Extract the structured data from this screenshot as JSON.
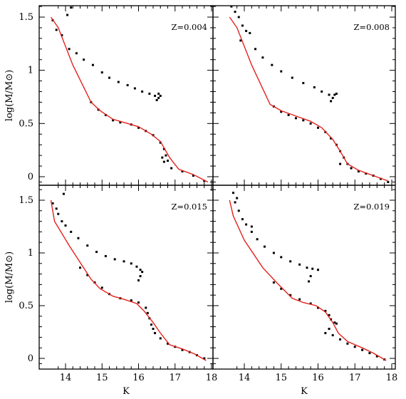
{
  "chart_data": {
    "type": "scatter",
    "layout": "2x2 grid of panels with shared axes",
    "xlabel": "K",
    "ylabel": "log(M/M⊙)",
    "xlim": [
      13.3,
      18.2
    ],
    "ylim": [
      -0.1,
      1.6
    ],
    "x_ticks": [
      14,
      15,
      16,
      17,
      18
    ],
    "y_ticks": [
      0,
      0.5,
      1,
      1.5
    ],
    "x_tick_labels": [
      "14",
      "15",
      "16",
      "17",
      "18"
    ],
    "y_tick_labels": [
      "0",
      "0.5",
      "1",
      "1.5"
    ],
    "grid": false,
    "colors": {
      "red_series": "#e3211c",
      "black_series": "#000000"
    },
    "panels": [
      {
        "label": "Z=0.004",
        "red_line": {
          "x": [
            13.6,
            13.8,
            14.2,
            14.7,
            14.95,
            15.3,
            15.6,
            16.0,
            16.35,
            16.6,
            16.7,
            16.85,
            17.1,
            17.5,
            17.9
          ],
          "y": [
            1.5,
            1.4,
            1.05,
            0.7,
            0.62,
            0.54,
            0.51,
            0.47,
            0.4,
            0.33,
            0.27,
            0.18,
            0.07,
            0.02,
            -0.05
          ]
        },
        "black_points": {
          "x": [
            13.65,
            13.75,
            13.9,
            14.1,
            14.3,
            14.5,
            14.75,
            15.0,
            15.2,
            15.45,
            15.7,
            15.9,
            16.1,
            16.3,
            16.45,
            16.55,
            16.6,
            16.5,
            16.55,
            14.7,
            14.9,
            15.1,
            15.3,
            15.5,
            15.8,
            16.0,
            16.2,
            16.4,
            16.6,
            16.7,
            16.75,
            16.65,
            16.7,
            16.8,
            16.9,
            17.2,
            17.5,
            17.8,
            14.05,
            14.15
          ],
          "y": [
            1.47,
            1.38,
            1.33,
            1.2,
            1.16,
            1.1,
            1.05,
            0.98,
            0.93,
            0.89,
            0.86,
            0.83,
            0.8,
            0.78,
            0.76,
            0.78,
            0.76,
            0.72,
            0.74,
            0.7,
            0.63,
            0.58,
            0.53,
            0.51,
            0.49,
            0.46,
            0.43,
            0.39,
            0.32,
            0.26,
            0.2,
            0.18,
            0.14,
            0.15,
            0.08,
            0.05,
            0.01,
            -0.04,
            1.52,
            1.59
          ]
        }
      },
      {
        "label": "Z=0.008",
        "red_line": {
          "x": [
            13.6,
            13.8,
            14.2,
            14.7,
            15.0,
            15.4,
            15.8,
            16.1,
            16.4,
            16.6,
            16.8,
            17.1,
            17.5,
            17.9
          ],
          "y": [
            1.5,
            1.4,
            1.05,
            0.68,
            0.62,
            0.57,
            0.52,
            0.46,
            0.35,
            0.24,
            0.12,
            0.06,
            0.01,
            -0.04
          ]
        },
        "black_points": {
          "x": [
            13.65,
            13.75,
            13.85,
            13.95,
            14.05,
            14.15,
            13.9,
            14.3,
            14.5,
            14.75,
            15.0,
            15.3,
            15.6,
            15.9,
            16.1,
            16.3,
            16.45,
            16.5,
            16.4,
            16.35,
            14.8,
            15.0,
            15.2,
            15.4,
            15.6,
            15.8,
            16.0,
            16.2,
            16.35,
            16.5,
            16.6,
            16.7,
            16.8,
            16.6,
            16.9,
            17.1,
            17.3,
            17.5,
            17.7,
            17.9
          ],
          "y": [
            1.6,
            1.55,
            1.5,
            1.42,
            1.37,
            1.35,
            1.28,
            1.2,
            1.12,
            1.05,
            0.99,
            0.93,
            0.88,
            0.84,
            0.8,
            0.77,
            0.77,
            0.78,
            0.74,
            0.71,
            0.66,
            0.61,
            0.58,
            0.55,
            0.53,
            0.5,
            0.46,
            0.42,
            0.36,
            0.3,
            0.24,
            0.18,
            0.12,
            0.12,
            0.08,
            0.05,
            0.03,
            0.01,
            -0.02,
            -0.05
          ]
        }
      },
      {
        "label": "Z=0.015",
        "red_line": {
          "x": [
            13.6,
            13.7,
            14.1,
            14.7,
            14.95,
            15.3,
            15.6,
            15.95,
            16.15,
            16.4,
            16.6,
            16.85,
            17.2,
            17.55,
            17.85
          ],
          "y": [
            1.5,
            1.3,
            1.07,
            0.75,
            0.66,
            0.59,
            0.56,
            0.52,
            0.45,
            0.34,
            0.24,
            0.13,
            0.09,
            0.04,
            -0.02
          ]
        },
        "black_points": {
          "x": [
            13.65,
            13.75,
            13.8,
            13.9,
            14.0,
            14.15,
            14.35,
            14.6,
            14.85,
            15.1,
            15.35,
            15.6,
            15.8,
            15.95,
            16.05,
            16.1,
            16.05,
            16.0,
            14.8,
            15.0,
            15.2,
            15.5,
            15.8,
            16.0,
            16.2,
            16.25,
            16.3,
            16.35,
            16.4,
            16.45,
            16.6,
            16.8,
            17.0,
            17.2,
            17.4,
            17.6,
            17.8,
            14.4,
            14.6,
            13.95
          ],
          "y": [
            1.47,
            1.42,
            1.37,
            1.3,
            1.26,
            1.2,
            1.14,
            1.07,
            1.01,
            0.97,
            0.94,
            0.92,
            0.9,
            0.87,
            0.84,
            0.82,
            0.78,
            0.74,
            0.72,
            0.67,
            0.61,
            0.57,
            0.55,
            0.53,
            0.48,
            0.43,
            0.38,
            0.32,
            0.28,
            0.24,
            0.19,
            0.14,
            0.11,
            0.08,
            0.06,
            0.03,
            0.0,
            0.86,
            0.79,
            1.56
          ]
        }
      },
      {
        "label": "Z=0.019",
        "red_line": {
          "x": [
            13.6,
            13.7,
            14.0,
            14.5,
            14.9,
            15.3,
            15.6,
            15.95,
            16.2,
            16.4,
            16.55,
            16.8,
            17.2,
            17.5,
            17.85
          ],
          "y": [
            1.5,
            1.35,
            1.12,
            0.86,
            0.71,
            0.57,
            0.53,
            0.5,
            0.44,
            0.34,
            0.24,
            0.16,
            0.1,
            0.05,
            -0.02
          ]
        },
        "black_points": {
          "x": [
            13.7,
            13.75,
            13.85,
            13.95,
            14.05,
            14.2,
            14.35,
            14.55,
            14.8,
            15.0,
            15.25,
            15.5,
            15.7,
            15.85,
            16.0,
            15.8,
            15.75,
            14.8,
            15.0,
            15.25,
            15.5,
            15.8,
            16.0,
            16.2,
            16.3,
            16.35,
            16.45,
            16.5,
            16.3,
            16.2,
            16.4,
            16.6,
            16.8,
            17.0,
            17.2,
            17.4,
            17.6,
            17.8,
            13.8,
            14.2
          ],
          "y": [
            1.57,
            1.48,
            1.4,
            1.32,
            1.27,
            1.2,
            1.13,
            1.06,
            1.0,
            0.96,
            0.92,
            0.89,
            0.86,
            0.85,
            0.84,
            0.78,
            0.73,
            0.72,
            0.66,
            0.6,
            0.56,
            0.52,
            0.48,
            0.45,
            0.41,
            0.37,
            0.34,
            0.33,
            0.28,
            0.24,
            0.22,
            0.18,
            0.14,
            0.11,
            0.08,
            0.05,
            0.02,
            -0.01,
            1.52,
            1.25
          ]
        }
      }
    ]
  }
}
